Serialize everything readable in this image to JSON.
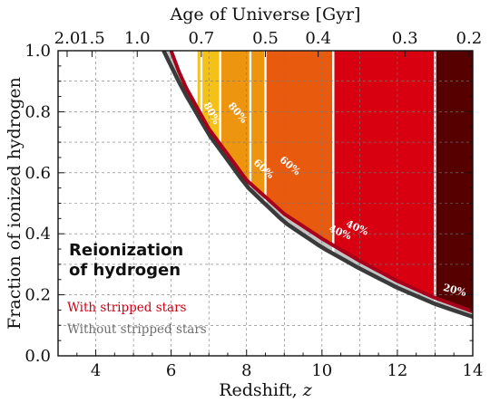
{
  "chart_data": {
    "type": "area",
    "xlabel_prefix": "Redshift, ",
    "xlabel_var": "z",
    "ylabel": "Fraction of ionized hydrogen",
    "top_axis_label": "Age of Universe [Gyr]",
    "xlim": [
      3,
      14
    ],
    "ylim": [
      0.0,
      1.0
    ],
    "x_ticks": [
      4,
      6,
      8,
      10,
      12,
      14
    ],
    "y_ticks": [
      "0.0",
      "0.2",
      "0.4",
      "0.6",
      "0.8",
      "1.0"
    ],
    "top_ticks": [
      {
        "label": "2.0",
        "z": 3.24
      },
      {
        "label": "1.5",
        "z": 3.9
      },
      {
        "label": "1.0",
        "z": 5.1
      },
      {
        "label": "0.7",
        "z": 6.8
      },
      {
        "label": "0.5",
        "z": 8.5
      },
      {
        "label": "0.4",
        "z": 9.9
      },
      {
        "label": "0.3",
        "z": 12.2
      },
      {
        "label": "0.2",
        "z": 13.9
      }
    ],
    "grid": true,
    "series": [
      {
        "name": "With stripped stars",
        "color": "#a8001a",
        "points": [
          [
            6.0,
            1.0
          ],
          [
            6.3,
            0.9
          ],
          [
            7.0,
            0.744
          ],
          [
            8.0,
            0.576
          ],
          [
            9.0,
            0.465
          ],
          [
            10.0,
            0.384
          ],
          [
            11.0,
            0.311
          ],
          [
            12.0,
            0.245
          ],
          [
            13.0,
            0.19
          ],
          [
            14.0,
            0.145
          ]
        ]
      },
      {
        "name": "Without stripped stars",
        "color": "#3a3a3a",
        "points": [
          [
            5.8,
            1.0
          ],
          [
            6.3,
            0.874
          ],
          [
            7.0,
            0.726
          ],
          [
            8.0,
            0.556
          ],
          [
            9.0,
            0.438
          ],
          [
            10.0,
            0.355
          ],
          [
            11.0,
            0.286
          ],
          [
            12.0,
            0.223
          ],
          [
            13.0,
            0.17
          ],
          [
            14.0,
            0.128
          ]
        ]
      }
    ],
    "bands": [
      {
        "from": 6.7,
        "to": 7.3,
        "color": "#f5c117"
      },
      {
        "from": 7.3,
        "to": 8.5,
        "color": "#ee950f"
      },
      {
        "from": 8.5,
        "to": 10.3,
        "color": "#e85a0e"
      },
      {
        "from": 10.3,
        "to": 13.0,
        "color": "#d80010"
      },
      {
        "from": 13.0,
        "to": 14.0,
        "color": "#560000"
      }
    ],
    "band_dividers": [
      6.8,
      7.3,
      8.1,
      8.5,
      10.3,
      13.0
    ],
    "percent_labels": [
      {
        "text": "80%",
        "x": 7.0,
        "y": 0.79,
        "angle": 62
      },
      {
        "text": "80%",
        "x": 7.7,
        "y": 0.79,
        "angle": 50
      },
      {
        "text": "60%",
        "x": 8.4,
        "y": 0.605,
        "angle": 42
      },
      {
        "text": "60%",
        "x": 9.1,
        "y": 0.615,
        "angle": 40
      },
      {
        "text": "40%",
        "x": 10.45,
        "y": 0.395,
        "angle": 22
      },
      {
        "text": "40%",
        "x": 10.9,
        "y": 0.41,
        "angle": 24
      },
      {
        "text": "20%",
        "x": 13.5,
        "y": 0.205,
        "angle": 14
      }
    ],
    "annotation": {
      "line1": "Reionization",
      "line2": "of hydrogen"
    },
    "legend": [
      {
        "text": "With stripped stars",
        "color": "#cc0014"
      },
      {
        "text": "Without stripped stars",
        "color": "#6e6e6e"
      }
    ]
  }
}
